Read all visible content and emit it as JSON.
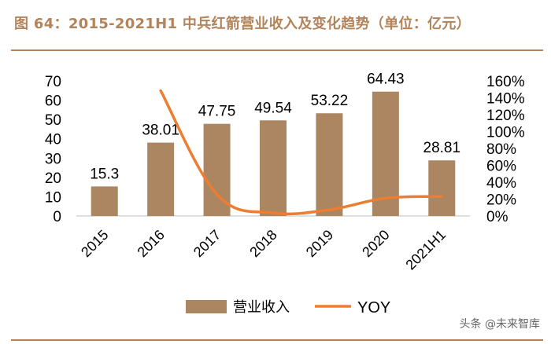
{
  "title": "图 64：2015-2021H1 中兵红箭营业收入及变化趋势（单位：亿元）",
  "watermark": "头条 @未来智库",
  "colors": {
    "accent": "#b3835a",
    "bar": "#ab8660",
    "line": "#ed7d31"
  },
  "chart_data": {
    "type": "bar",
    "categories": [
      "2015",
      "2016",
      "2017",
      "2018",
      "2019",
      "2020",
      "2021H1"
    ],
    "series": [
      {
        "name": "营业收入",
        "type": "bar",
        "axis": "left",
        "values": [
          15.3,
          38.01,
          47.75,
          49.54,
          53.22,
          64.43,
          28.81
        ],
        "labels": [
          "15.3",
          "38.01",
          "47.75",
          "49.54",
          "53.22",
          "64.43",
          "28.81"
        ]
      },
      {
        "name": "YOY",
        "type": "line",
        "axis": "right",
        "values": [
          null,
          148.4,
          25.6,
          3.7,
          7.4,
          21.1,
          23.0
        ]
      }
    ],
    "y_left": {
      "lim": [
        0,
        70
      ],
      "ticks": [
        "0",
        "10",
        "20",
        "30",
        "40",
        "50",
        "60",
        "70"
      ]
    },
    "y_right": {
      "lim": [
        0,
        160
      ],
      "ticks": [
        "0%",
        "20%",
        "40%",
        "60%",
        "80%",
        "100%",
        "120%",
        "140%",
        "160%"
      ]
    },
    "grid": false,
    "legend_position": "bottom"
  }
}
